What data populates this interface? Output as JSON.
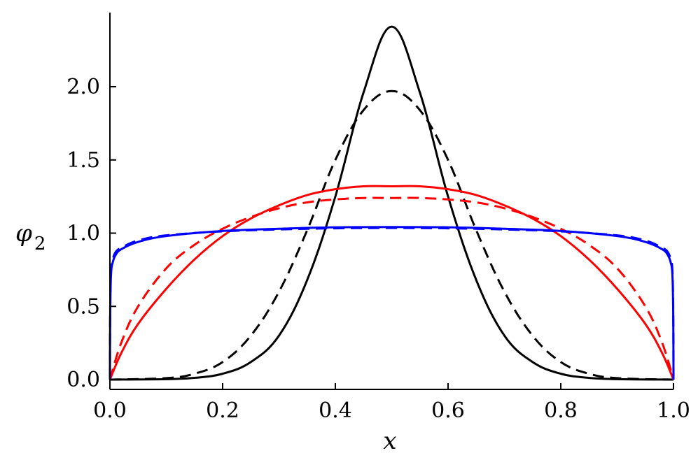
{
  "chart_data": {
    "type": "line",
    "title": "",
    "xlabel": "x",
    "ylabel": "φ",
    "ylabel_subscript": "2",
    "xlim": [
      0.0,
      1.0
    ],
    "ylim": [
      -0.03,
      2.45
    ],
    "grid": false,
    "legend": "none",
    "xticks": [
      0.0,
      0.2,
      0.4,
      0.6,
      0.8,
      1.0
    ],
    "xtick_labels": [
      "0.0",
      "0.2",
      "0.4",
      "0.6",
      "0.8",
      "1.0"
    ],
    "yticks": [
      0.0,
      0.5,
      1.0,
      1.5,
      2.0
    ],
    "ytick_labels": [
      "0.0",
      "0.5",
      "1.0",
      "1.5",
      "2.0"
    ],
    "series": [
      {
        "color": "#000000",
        "linestyle": "solid",
        "x": [
          0.0,
          0.1,
          0.15,
          0.2,
          0.25,
          0.3,
          0.35,
          0.4,
          0.45,
          0.5,
          0.55,
          0.6,
          0.65,
          0.7,
          0.75,
          0.8,
          0.85,
          0.9,
          1.0
        ],
        "y": [
          0.0,
          0.003,
          0.012,
          0.04,
          0.12,
          0.3,
          0.68,
          1.25,
          1.96,
          2.41,
          1.96,
          1.25,
          0.68,
          0.3,
          0.12,
          0.04,
          0.012,
          0.003,
          0.0
        ]
      },
      {
        "color": "#000000",
        "linestyle": "dashed",
        "x": [
          0.0,
          0.1,
          0.15,
          0.2,
          0.25,
          0.3,
          0.35,
          0.4,
          0.45,
          0.5,
          0.55,
          0.6,
          0.65,
          0.7,
          0.75,
          0.8,
          0.85,
          0.9,
          1.0
        ],
        "y": [
          0.0,
          0.01,
          0.04,
          0.12,
          0.3,
          0.6,
          1.02,
          1.5,
          1.84,
          1.97,
          1.84,
          1.5,
          1.02,
          0.6,
          0.3,
          0.12,
          0.04,
          0.01,
          0.0
        ]
      },
      {
        "color": "#ff0000",
        "linestyle": "solid",
        "x": [
          0.0,
          0.02,
          0.05,
          0.1,
          0.15,
          0.2,
          0.25,
          0.3,
          0.35,
          0.4,
          0.45,
          0.5,
          0.55,
          0.6,
          0.65,
          0.7,
          0.75,
          0.8,
          0.85,
          0.9,
          0.95,
          0.98,
          1.0
        ],
        "y": [
          0.0,
          0.18,
          0.38,
          0.62,
          0.82,
          0.98,
          1.1,
          1.19,
          1.26,
          1.3,
          1.32,
          1.32,
          1.32,
          1.3,
          1.26,
          1.19,
          1.1,
          0.98,
          0.82,
          0.62,
          0.38,
          0.18,
          0.0
        ]
      },
      {
        "color": "#ff0000",
        "linestyle": "dashed",
        "x": [
          0.0,
          0.02,
          0.05,
          0.1,
          0.15,
          0.2,
          0.25,
          0.3,
          0.35,
          0.4,
          0.45,
          0.5,
          0.55,
          0.6,
          0.65,
          0.7,
          0.75,
          0.8,
          0.85,
          0.9,
          0.95,
          0.98,
          1.0
        ],
        "y": [
          0.0,
          0.25,
          0.5,
          0.76,
          0.92,
          1.03,
          1.11,
          1.17,
          1.21,
          1.23,
          1.24,
          1.24,
          1.24,
          1.23,
          1.21,
          1.17,
          1.11,
          1.03,
          0.92,
          0.76,
          0.5,
          0.25,
          0.0
        ]
      },
      {
        "color": "#0000ff",
        "linestyle": "solid",
        "x": [
          0.0,
          0.0005,
          0.002,
          0.005,
          0.01,
          0.02,
          0.05,
          0.1,
          0.2,
          0.3,
          0.4,
          0.5,
          0.6,
          0.7,
          0.8,
          0.9,
          0.95,
          0.98,
          0.99,
          0.995,
          0.998,
          0.9995,
          1.0
        ],
        "y": [
          0.0,
          0.45,
          0.72,
          0.8,
          0.85,
          0.89,
          0.94,
          0.98,
          1.015,
          1.03,
          1.04,
          1.042,
          1.04,
          1.03,
          1.015,
          0.98,
          0.94,
          0.89,
          0.85,
          0.8,
          0.72,
          0.45,
          0.0
        ]
      },
      {
        "color": "#0000ff",
        "linestyle": "dashed",
        "x": [
          0.0,
          0.0005,
          0.002,
          0.005,
          0.01,
          0.02,
          0.05,
          0.1,
          0.2,
          0.3,
          0.4,
          0.5,
          0.6,
          0.7,
          0.8,
          0.9,
          0.95,
          0.98,
          0.99,
          0.995,
          0.998,
          0.9995,
          1.0
        ],
        "y": [
          0.0,
          0.48,
          0.75,
          0.82,
          0.87,
          0.9,
          0.95,
          0.985,
          1.012,
          1.025,
          1.033,
          1.035,
          1.033,
          1.025,
          1.012,
          0.985,
          0.95,
          0.9,
          0.87,
          0.82,
          0.75,
          0.48,
          0.0
        ]
      }
    ]
  }
}
